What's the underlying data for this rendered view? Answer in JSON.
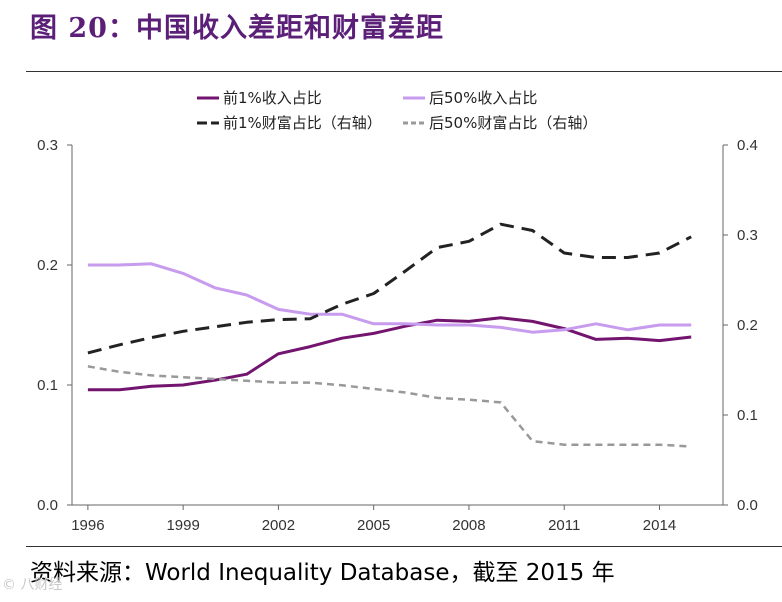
{
  "header": {
    "title": "图 20：中国收入差距和财富差距"
  },
  "footer": {
    "source": "资料来源：World Inequality Database，截至 2015 年",
    "watermark": "© 八财经"
  },
  "chart_data": {
    "type": "line",
    "title": "中国收入差距和财富差距",
    "x": [
      1996,
      1997,
      1998,
      1999,
      2000,
      2001,
      2002,
      2003,
      2004,
      2005,
      2006,
      2007,
      2008,
      2009,
      2010,
      2011,
      2012,
      2013,
      2014,
      2015
    ],
    "x_ticks": [
      1996,
      1999,
      2002,
      2005,
      2008,
      2011,
      2014
    ],
    "x_tick_labels": [
      "1996",
      "1999",
      "2002",
      "2005",
      "2008",
      "2011",
      "2014"
    ],
    "left_axis": {
      "ylim": [
        0,
        0.3
      ],
      "ticks": [
        0,
        0.1,
        0.2,
        0.3
      ],
      "tick_labels": [
        "0.0",
        "0.1",
        "0.2",
        "0.3"
      ]
    },
    "right_axis": {
      "ylim": [
        0,
        0.4
      ],
      "ticks": [
        0,
        0.1,
        0.2,
        0.3,
        0.4
      ],
      "tick_labels": [
        "0.0",
        "0.1",
        "0.2",
        "0.3",
        "0.4"
      ]
    },
    "legend_position": "top-center",
    "series": [
      {
        "name": "前1%收入占比",
        "axis": "left",
        "color": "#73146f",
        "dash": "solid",
        "values": [
          0.096,
          0.096,
          0.099,
          0.1,
          0.104,
          0.109,
          0.126,
          0.132,
          0.139,
          0.143,
          0.149,
          0.154,
          0.153,
          0.156,
          0.153,
          0.147,
          0.138,
          0.139,
          0.137,
          0.14
        ]
      },
      {
        "name": "后50%收入占比",
        "axis": "left",
        "color": "#c79bee",
        "dash": "solid",
        "values": [
          0.2,
          0.2,
          0.201,
          0.193,
          0.181,
          0.175,
          0.163,
          0.159,
          0.159,
          0.151,
          0.151,
          0.15,
          0.15,
          0.148,
          0.144,
          0.146,
          0.151,
          0.146,
          0.15,
          0.15
        ]
      },
      {
        "name": "前1%财富占比（右轴）",
        "axis": "right",
        "color": "#222222",
        "dash": "dashed",
        "values": [
          0.169,
          0.178,
          0.186,
          0.193,
          0.198,
          0.203,
          0.206,
          0.207,
          0.223,
          0.235,
          0.26,
          0.286,
          0.293,
          0.312,
          0.305,
          0.28,
          0.275,
          0.275,
          0.28,
          0.298
        ]
      },
      {
        "name": "后50%财富占比（右轴）",
        "axis": "right",
        "color": "#999999",
        "dash": "dashed",
        "values": [
          0.154,
          0.148,
          0.144,
          0.142,
          0.14,
          0.138,
          0.136,
          0.136,
          0.133,
          0.129,
          0.125,
          0.119,
          0.117,
          0.114,
          0.071,
          0.067,
          0.067,
          0.067,
          0.067,
          0.065
        ]
      }
    ]
  }
}
